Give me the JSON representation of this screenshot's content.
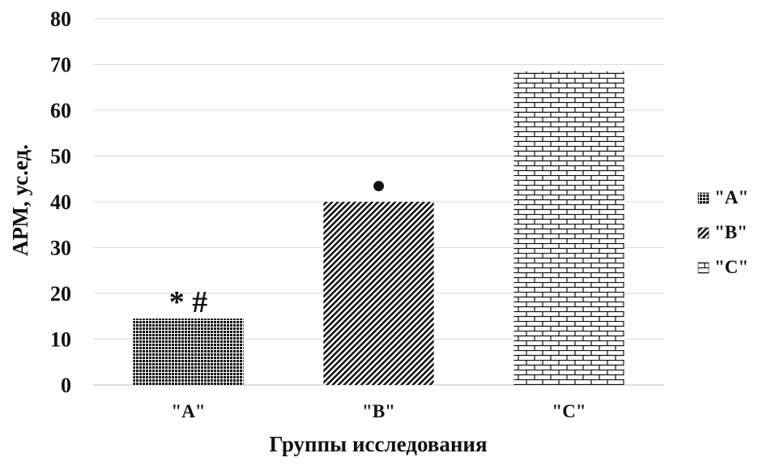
{
  "chart_data": {
    "type": "bar",
    "categories": [
      "\"A\"",
      "\"B\"",
      "\"C\""
    ],
    "values": [
      14.5,
      40,
      68.5
    ],
    "ylim": [
      0,
      80
    ],
    "yticks": [
      0,
      10,
      20,
      30,
      40,
      50,
      60,
      70,
      80
    ],
    "xlabel": "Группы исследования",
    "ylabel": "АРМ, ус.ед.",
    "title": "",
    "grid": true,
    "legend_position": "right",
    "legend": [
      "\"A\"",
      "\"B\"",
      "\"C\""
    ],
    "patterns": [
      "dense-dots",
      "diagonal-stripes",
      "bricks"
    ],
    "annotations": [
      {
        "category_index": 0,
        "text": "* #"
      },
      {
        "category_index": 1,
        "text": "●"
      }
    ],
    "colors": {
      "ink": "#111111",
      "grid": "#d9d9d9",
      "background": "#ffffff"
    }
  }
}
